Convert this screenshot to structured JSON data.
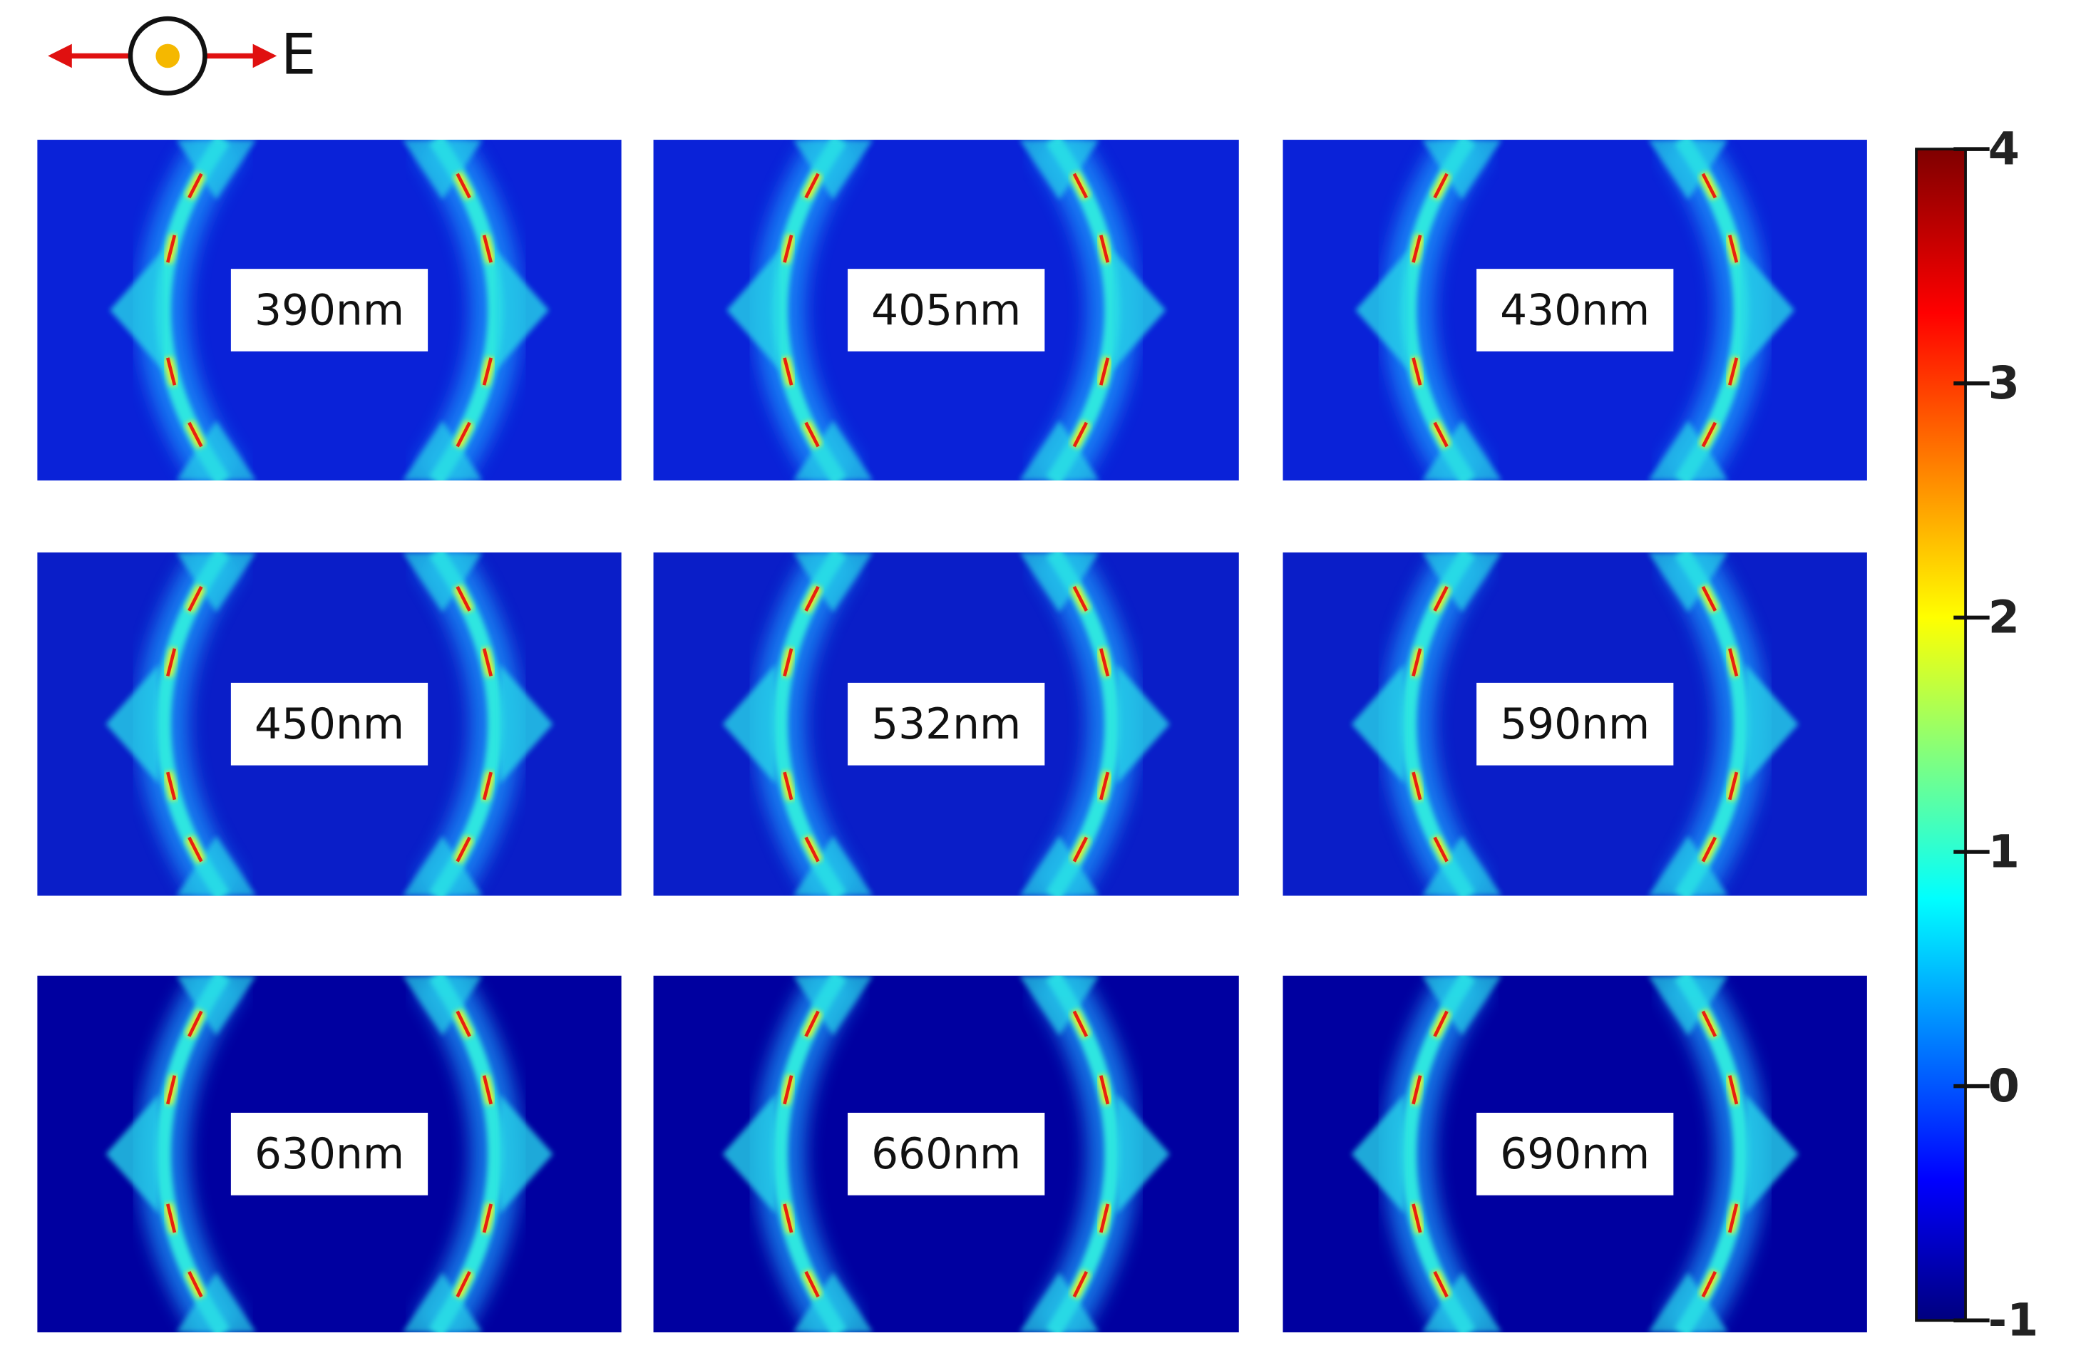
{
  "polarization": {
    "label": "E"
  },
  "panels": [
    {
      "label": "390nm"
    },
    {
      "label": "405nm"
    },
    {
      "label": "430nm"
    },
    {
      "label": "450nm"
    },
    {
      "label": "532nm"
    },
    {
      "label": "590nm"
    },
    {
      "label": "630nm"
    },
    {
      "label": "660nm"
    },
    {
      "label": "690nm"
    }
  ],
  "colorbar": {
    "lim": [
      -1,
      4
    ],
    "ticks": [
      -1,
      0,
      1,
      2,
      3,
      4
    ]
  }
}
